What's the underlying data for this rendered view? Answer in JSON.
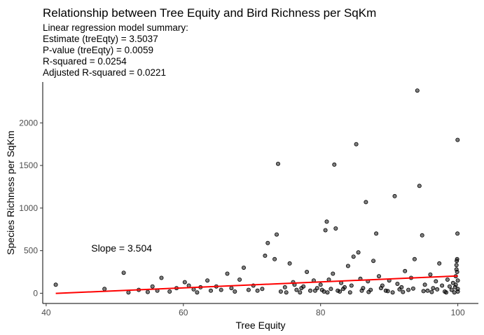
{
  "chart_data": {
    "type": "scatter",
    "title": "Relationship between Tree Equity and Bird Richness per SqKm",
    "subtitle_lines": [
      "Linear regression model summary:",
      "Estimate (treEqty) = 3.5037",
      "P-value (treEqty) = 0.0059",
      "R-squared = 0.0254",
      "Adjusted R-squared = 0.0221"
    ],
    "xlabel": "Tree Equity",
    "ylabel": "Species Richness per SqKm",
    "xlim": [
      39.5,
      103
    ],
    "ylim": [
      -120,
      2480
    ],
    "xticks": [
      40,
      60,
      80,
      100
    ],
    "yticks": [
      0,
      500,
      1000,
      1500,
      2000
    ],
    "annotation": {
      "text": "Slope =  3.504",
      "x": 51,
      "y": 490
    },
    "regression_line": {
      "x": [
        41.4,
        100
      ],
      "y": [
        -2,
        203
      ],
      "color": "#ff0000"
    },
    "point_color": "#000000",
    "grid": false,
    "points": [
      [
        41.4,
        100
      ],
      [
        48.5,
        50
      ],
      [
        51.3,
        240
      ],
      [
        52.0,
        10
      ],
      [
        53.5,
        40
      ],
      [
        54.8,
        15
      ],
      [
        55.5,
        80
      ],
      [
        56.2,
        30
      ],
      [
        56.8,
        180
      ],
      [
        58.0,
        20
      ],
      [
        59.0,
        60
      ],
      [
        60.2,
        130
      ],
      [
        60.8,
        90
      ],
      [
        61.5,
        45
      ],
      [
        62.0,
        10
      ],
      [
        62.5,
        70
      ],
      [
        63.5,
        150
      ],
      [
        64.0,
        30
      ],
      [
        64.8,
        80
      ],
      [
        65.5,
        40
      ],
      [
        66.4,
        230
      ],
      [
        67.0,
        60
      ],
      [
        67.5,
        20
      ],
      [
        68.2,
        160
      ],
      [
        68.8,
        300
      ],
      [
        69.5,
        40
      ],
      [
        70.2,
        90
      ],
      [
        70.8,
        30
      ],
      [
        71.5,
        50
      ],
      [
        71.9,
        440
      ],
      [
        72.3,
        590
      ],
      [
        73.3,
        400
      ],
      [
        73.6,
        690
      ],
      [
        73.8,
        1520
      ],
      [
        74.2,
        20
      ],
      [
        74.8,
        70
      ],
      [
        75.5,
        350
      ],
      [
        76.0,
        130
      ],
      [
        76.5,
        40
      ],
      [
        77.0,
        10
      ],
      [
        77.5,
        80
      ],
      [
        78.0,
        250
      ],
      [
        78.5,
        30
      ],
      [
        79.0,
        150
      ],
      [
        79.5,
        60
      ],
      [
        80.0,
        100
      ],
      [
        80.5,
        20
      ],
      [
        80.7,
        740
      ],
      [
        80.9,
        840
      ],
      [
        81.2,
        160
      ],
      [
        81.5,
        50
      ],
      [
        81.8,
        230
      ],
      [
        82.0,
        1510
      ],
      [
        82.2,
        760
      ],
      [
        82.5,
        30
      ],
      [
        83.0,
        120
      ],
      [
        83.5,
        70
      ],
      [
        84.0,
        320
      ],
      [
        84.3,
        10
      ],
      [
        84.8,
        430
      ],
      [
        85.2,
        1750
      ],
      [
        85.5,
        480
      ],
      [
        85.8,
        170
      ],
      [
        86.2,
        60
      ],
      [
        86.6,
        1070
      ],
      [
        86.9,
        140
      ],
      [
        87.3,
        40
      ],
      [
        87.7,
        380
      ],
      [
        88.1,
        700
      ],
      [
        88.5,
        200
      ],
      [
        89.0,
        90
      ],
      [
        89.5,
        30
      ],
      [
        90.0,
        150
      ],
      [
        90.5,
        10
      ],
      [
        90.8,
        1140
      ],
      [
        91.2,
        110
      ],
      [
        91.8,
        70
      ],
      [
        92.3,
        260
      ],
      [
        92.8,
        40
      ],
      [
        93.2,
        180
      ],
      [
        93.7,
        400
      ],
      [
        94.1,
        2380
      ],
      [
        94.4,
        1260
      ],
      [
        94.8,
        680
      ],
      [
        95.2,
        100
      ],
      [
        95.6,
        30
      ],
      [
        96.0,
        220
      ],
      [
        96.4,
        60
      ],
      [
        96.8,
        140
      ],
      [
        97.3,
        350
      ],
      [
        97.7,
        90
      ],
      [
        98.1,
        20
      ],
      [
        98.5,
        160
      ],
      [
        98.8,
        80
      ],
      [
        99.1,
        40
      ],
      [
        99.3,
        120
      ],
      [
        99.5,
        10
      ],
      [
        99.6,
        70
      ],
      [
        99.7,
        200
      ],
      [
        99.8,
        280
      ],
      [
        99.85,
        380
      ],
      [
        99.9,
        400
      ],
      [
        99.95,
        700
      ],
      [
        99.97,
        1800
      ],
      [
        100,
        150
      ],
      [
        100,
        50
      ],
      [
        100,
        20
      ],
      [
        99.9,
        250
      ],
      [
        99.8,
        330
      ],
      [
        99.7,
        100
      ],
      [
        75.0,
        10
      ],
      [
        76.2,
        100
      ],
      [
        77.2,
        60
      ],
      [
        79.2,
        30
      ],
      [
        80.2,
        40
      ],
      [
        81.0,
        10
      ],
      [
        82.8,
        20
      ],
      [
        83.3,
        50
      ],
      [
        84.5,
        90
      ],
      [
        86.0,
        30
      ],
      [
        87.0,
        15
      ],
      [
        88.8,
        60
      ],
      [
        89.8,
        25
      ],
      [
        91.5,
        45
      ],
      [
        92.0,
        15
      ],
      [
        93.5,
        55
      ],
      [
        95.0,
        25
      ],
      [
        96.2,
        15
      ],
      [
        97.0,
        45
      ],
      [
        98.3,
        10
      ]
    ]
  }
}
